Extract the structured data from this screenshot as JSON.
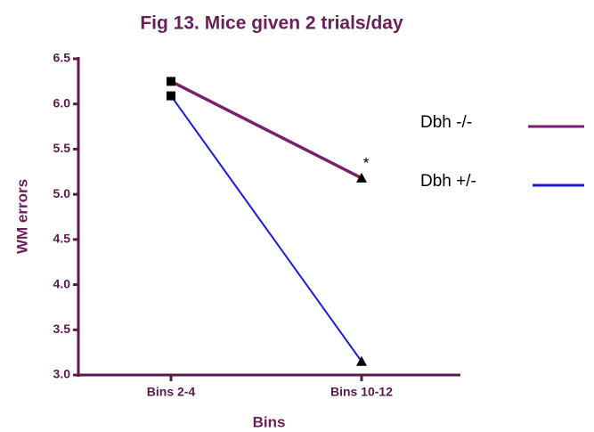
{
  "chart_data": {
    "type": "line",
    "title": "Fig 13. Mice given 2 trials/day",
    "xlabel": "Bins",
    "ylabel": "WM errors",
    "categories": [
      "Bins 2-4",
      "Bins 10-12"
    ],
    "series": [
      {
        "name": "Dbh -/-",
        "color": "#7a1f6e",
        "values": [
          6.25,
          5.18
        ]
      },
      {
        "name": "Dbh +/-",
        "color": "#1a1ae0",
        "values": [
          6.09,
          3.15
        ]
      }
    ],
    "markers": [
      "square",
      "triangle"
    ],
    "annotations": [
      {
        "text": "*",
        "series": 0,
        "index": 1
      }
    ],
    "ylim": [
      3,
      6.5
    ],
    "yticks": [
      {
        "value": 3,
        "label": "3.0"
      },
      3.5,
      {
        "value": 4,
        "label": "4.0"
      },
      4.5,
      {
        "value": 5,
        "label": "5.0"
      },
      5.5,
      {
        "value": 6,
        "label": "6.0"
      },
      6.5
    ],
    "legend": "right"
  }
}
